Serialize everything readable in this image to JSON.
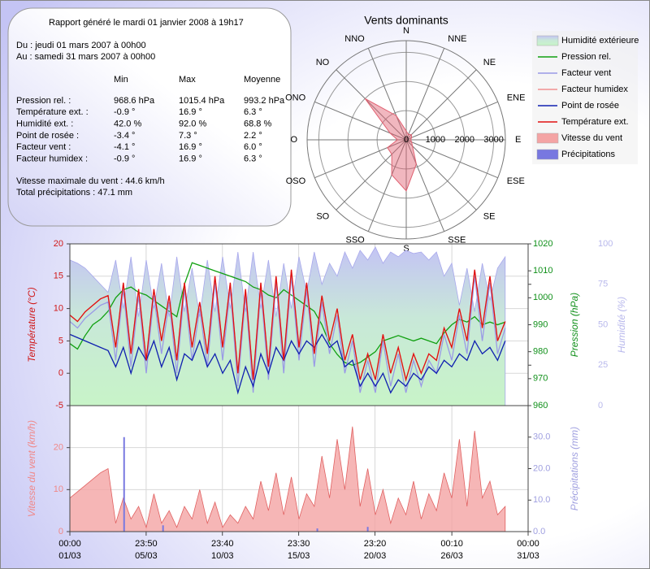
{
  "report": {
    "title": "Rapport généré le mardi 01 janvier 2008 à 19h17",
    "from": "Du : jeudi 01 mars 2007 à 00h00",
    "to": "Au : samedi 31 mars 2007 à 00h00",
    "columns": [
      "Min",
      "Max",
      "Moyenne"
    ],
    "rows": [
      {
        "label": "Pression rel. :",
        "values": [
          "968.6 hPa",
          "1015.4 hPa",
          "993.2 hPa"
        ]
      },
      {
        "label": "Température ext. :",
        "values": [
          "-0.9 °",
          "16.9 °",
          "6.3 °"
        ]
      },
      {
        "label": "Humidité ext. :",
        "values": [
          "42.0 %",
          "92.0 %",
          "68.8 %"
        ]
      },
      {
        "label": "Point de rosée :",
        "values": [
          "-3.4 °",
          "7.3 °",
          "2.2 °"
        ]
      },
      {
        "label": "Facteur vent :",
        "values": [
          "-4.1 °",
          "16.9 °",
          "6.0 °"
        ]
      },
      {
        "label": "Facteur humidex :",
        "values": [
          "-0.9 °",
          "16.9 °",
          "6.3 °"
        ]
      }
    ],
    "max_wind": "Vitesse maximale du vent : 44.6 km/h",
    "total_rain": "Total précipitations : 47.1 mm"
  },
  "chart_data": [
    {
      "type": "radar",
      "title": "Vents dominants",
      "categories": [
        "N",
        "NNE",
        "NE",
        "ENE",
        "E",
        "ESE",
        "SE",
        "SSE",
        "S",
        "SSO",
        "SO",
        "OSO",
        "O",
        "ONO",
        "NO",
        "NNO"
      ],
      "values": [
        300,
        200,
        250,
        200,
        150,
        200,
        300,
        900,
        1750,
        1300,
        700,
        700,
        300,
        600,
        2000,
        900
      ],
      "color": "#e06070",
      "rlim": [
        0,
        3400
      ],
      "rticks": [
        0,
        1000,
        2000,
        3000
      ]
    },
    {
      "type": "line",
      "grid": true,
      "x": [
        0,
        0.5,
        1,
        1.5,
        2,
        2.5,
        3,
        3.5,
        4,
        4.5,
        5,
        5.5,
        6,
        6.5,
        7,
        7.5,
        8,
        8.5,
        9,
        9.5,
        10,
        10.5,
        11,
        11.5,
        12,
        12.5,
        13,
        13.5,
        14,
        14.5,
        15,
        15.5,
        16,
        16.5,
        17,
        17.5,
        18,
        18.5,
        19,
        19.5,
        20,
        20.5,
        21,
        21.5,
        22,
        22.5,
        23,
        23.5,
        24,
        24.5,
        25,
        25.5,
        26,
        26.5,
        27,
        27.5,
        28,
        28.5
      ],
      "xlim": [
        0,
        30
      ],
      "ylabel": "Température (°C)",
      "ylim": [
        -5,
        20
      ],
      "yticks": [
        -5,
        0,
        5,
        10,
        15,
        20
      ],
      "ycolor": "#d01818",
      "y2label": "Pression (hPa)",
      "y2lim": [
        960,
        1020
      ],
      "y2ticks": [
        960,
        970,
        980,
        990,
        1000,
        1010,
        1020
      ],
      "y2color": "#10901a",
      "y3label": "Humidité (%)",
      "y3lim": [
        0,
        100
      ],
      "y3ticks": [
        0,
        25,
        50,
        75,
        100
      ],
      "y3color": "#b8b8ec",
      "series": [
        {
          "name": "Humidité extérieure",
          "type": "area",
          "axis": "y3",
          "color": "#b4b4f0",
          "values": [
            90,
            88,
            85,
            80,
            75,
            70,
            90,
            60,
            92,
            55,
            90,
            60,
            88,
            55,
            92,
            58,
            85,
            55,
            90,
            58,
            92,
            60,
            95,
            58,
            95,
            60,
            90,
            55,
            88,
            60,
            92,
            70,
            95,
            75,
            88,
            80,
            95,
            85,
            96,
            90,
            98,
            88,
            95,
            92,
            96,
            94,
            95,
            90,
            95,
            80,
            88,
            62,
            85,
            58,
            88,
            65,
            85,
            92
          ]
        },
        {
          "name": "Pression rel.",
          "type": "line",
          "axis": "y2",
          "color": "#10a010",
          "values": [
            983,
            981,
            986,
            990,
            992,
            995,
            1000,
            1003,
            1004,
            1002,
            1001,
            999,
            997,
            995,
            993,
            1005,
            1013,
            1012,
            1011,
            1010,
            1009,
            1008,
            1007,
            1006,
            1004,
            1003,
            1001,
            1000,
            1003,
            1001,
            999,
            997,
            995,
            990,
            983,
            979,
            976,
            975,
            976,
            978,
            980,
            984,
            985,
            986,
            985,
            984,
            985,
            984,
            983,
            987,
            990,
            992,
            991,
            993,
            990,
            991,
            990,
            991
          ]
        },
        {
          "name": "Facteur vent",
          "type": "line",
          "axis": "y",
          "color": "#9a9ae6",
          "values": [
            8,
            7,
            8.5,
            9.5,
            10.5,
            11,
            2,
            13,
            1,
            12,
            0,
            12,
            3,
            11,
            0,
            13,
            2,
            10,
            1,
            14,
            2,
            13,
            -2,
            12,
            -3,
            13,
            -1,
            14,
            0,
            15,
            2,
            13,
            1,
            11,
            3,
            9,
            0,
            5,
            -3,
            2,
            -3,
            5,
            -2,
            3,
            -3,
            2,
            -2,
            2,
            0,
            6,
            2,
            9,
            3,
            15,
            5,
            14,
            3,
            7
          ]
        },
        {
          "name": "Facteur humidex",
          "type": "line",
          "axis": "y",
          "color": "#f09090",
          "values": [
            9,
            8,
            9.5,
            10.5,
            11.5,
            12,
            4,
            14,
            3,
            13,
            2,
            13,
            5,
            12,
            2,
            14,
            4,
            11,
            3,
            15,
            4,
            14,
            0,
            13,
            -1,
            14,
            1,
            15,
            2,
            16,
            4,
            14,
            3,
            12,
            5,
            10,
            2,
            6,
            -1,
            3,
            -1,
            6,
            0,
            4,
            -1,
            3,
            0,
            3,
            2,
            7,
            4,
            10,
            5,
            16,
            7,
            15,
            5,
            8
          ]
        },
        {
          "name": "Point de rosée",
          "type": "line",
          "axis": "y",
          "color": "#1020b0",
          "values": [
            6,
            5.5,
            5,
            4.5,
            4,
            3.5,
            1,
            4,
            0,
            4,
            2,
            5,
            1,
            4,
            -1,
            3,
            2,
            5,
            1,
            3,
            0,
            2,
            -3,
            1,
            -2,
            3,
            0,
            4,
            2,
            5,
            3,
            5,
            4,
            6,
            4,
            5,
            1,
            2,
            -2,
            0,
            -2,
            0,
            -3,
            -1,
            -2,
            0,
            -1,
            1,
            0,
            2,
            1,
            3,
            2,
            5,
            3,
            4,
            2,
            5
          ]
        },
        {
          "name": "Température ext.",
          "type": "line",
          "axis": "y",
          "color": "#e01010",
          "values": [
            9,
            8,
            9.5,
            10.5,
            11.5,
            12,
            4,
            14,
            3,
            13,
            2,
            13,
            5,
            12,
            2,
            14,
            4,
            11,
            3,
            15,
            4,
            14,
            0,
            13,
            -1,
            14,
            1,
            15,
            2,
            16,
            4,
            14,
            3,
            12,
            5,
            10,
            2,
            6,
            -1,
            3,
            -1,
            6,
            0,
            4,
            -1,
            3,
            0,
            3,
            2,
            7,
            4,
            10,
            5,
            16,
            7,
            15,
            5,
            8
          ]
        }
      ]
    },
    {
      "type": "area",
      "grid": true,
      "x": [
        0,
        0.5,
        1,
        1.5,
        2,
        2.5,
        3,
        3.5,
        4,
        4.5,
        5,
        5.5,
        6,
        6.5,
        7,
        7.5,
        8,
        8.5,
        9,
        9.5,
        10,
        10.5,
        11,
        11.5,
        12,
        12.5,
        13,
        13.5,
        14,
        14.5,
        15,
        15.5,
        16,
        16.5,
        17,
        17.5,
        18,
        18.5,
        19,
        19.5,
        20,
        20.5,
        21,
        21.5,
        22,
        22.5,
        23,
        23.5,
        24,
        24.5,
        25,
        25.5,
        26,
        26.5,
        27,
        27.5,
        28,
        28.5
      ],
      "xlim": [
        0,
        30
      ],
      "xticks": [
        {
          "value": 0,
          "label": "00:00",
          "date": "01/03"
        },
        {
          "value": 4.993,
          "label": "23:50",
          "date": "05/03"
        },
        {
          "value": 9.986,
          "label": "23:40",
          "date": "10/03"
        },
        {
          "value": 14.979,
          "label": "23:30",
          "date": "15/03"
        },
        {
          "value": 19.972,
          "label": "23:20",
          "date": "20/03"
        },
        {
          "value": 25.007,
          "label": "00:10",
          "date": "26/03"
        },
        {
          "value": 30,
          "label": "00:00",
          "date": "31/03"
        }
      ],
      "ylabel": "Vitesse du vent (km/h)",
      "ylim": [
        0,
        30
      ],
      "yticks": [
        0,
        10,
        20
      ],
      "ycolor": "#f08888",
      "y2label": "Précipitations (mm)",
      "y2lim": [
        0,
        40
      ],
      "y2ticks": [
        {
          "value": 0,
          "label": "0.0"
        },
        {
          "value": 10,
          "label": "10.0"
        },
        {
          "value": 20,
          "label": "20.0"
        },
        {
          "value": 30,
          "label": "30.0"
        }
      ],
      "y2color": "#a0a0e0",
      "series": [
        {
          "name": "Vitesse du vent",
          "type": "area",
          "axis": "y",
          "color": "#f4a4a4",
          "values": [
            8,
            9.5,
            11,
            12.5,
            14,
            15,
            2,
            8,
            3,
            6,
            1,
            9,
            2,
            5,
            1,
            6,
            3,
            10,
            2,
            7,
            1,
            4,
            2,
            6,
            3,
            12,
            5,
            14,
            4,
            13,
            3,
            9,
            6,
            18,
            8,
            22,
            10,
            25,
            6,
            15,
            4,
            10,
            2,
            8,
            4,
            12,
            3,
            9,
            5,
            14,
            8,
            22,
            6,
            24,
            8,
            12,
            4,
            6
          ]
        },
        {
          "name": "Précipitations",
          "type": "bar",
          "axis": "y2",
          "color": "#7878e0",
          "x": [
            3.55,
            6.1,
            16.2,
            19.5
          ],
          "values": [
            30,
            2,
            1,
            1.5
          ]
        }
      ]
    }
  ]
}
